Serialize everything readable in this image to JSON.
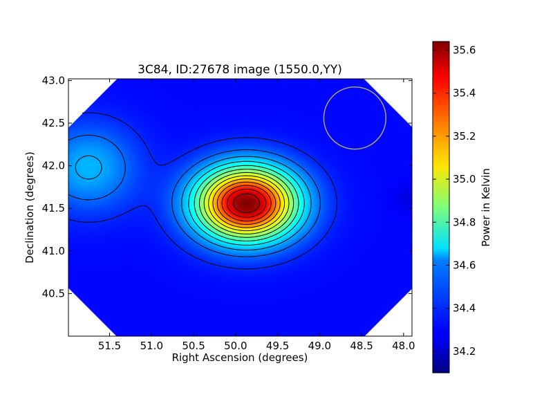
{
  "chart_data": {
    "type": "heatmap",
    "title": "3C84, ID:27678 image (1550.0,YY)",
    "xlabel": "Right Ascension (degrees)",
    "ylabel": "Declination (degrees)",
    "xlim": [
      51.99,
      47.9
    ],
    "ylim": [
      40.0,
      43.02
    ],
    "x_ticks": [
      51.5,
      51.0,
      50.5,
      50.0,
      49.5,
      49.0,
      48.5,
      48.0
    ],
    "x_tick_labels": [
      "51.5",
      "51.0",
      "50.5",
      "50.0",
      "49.5",
      "49.0",
      "48.5",
      "48.0"
    ],
    "y_ticks": [
      40.5,
      41.0,
      41.5,
      42.0,
      42.5,
      43.0
    ],
    "y_tick_labels": [
      "40.5",
      "41.0",
      "41.5",
      "42.0",
      "42.5",
      "43.0"
    ],
    "colorbar": {
      "label": "Power in Kelvin",
      "range": [
        34.1,
        35.64
      ],
      "ticks": [
        34.2,
        34.4,
        34.6,
        34.8,
        35.0,
        35.2,
        35.4,
        35.6
      ],
      "tick_labels": [
        "34.2",
        "34.4",
        "34.6",
        "34.8",
        "35.0",
        "35.2",
        "35.4",
        "35.6"
      ],
      "colormap": "jet"
    },
    "sources": [
      {
        "ra": 49.87,
        "dec": 41.56,
        "peak": 35.64,
        "baseline": 34.3,
        "sigma_ra": 0.42,
        "sigma_dec": 0.3
      },
      {
        "ra": 51.75,
        "dec": 41.98,
        "peak": 34.57,
        "sigma_ra": 0.4,
        "sigma_dec": 0.35
      },
      {
        "ra": 47.95,
        "dec": 41.62,
        "peak": 34.25,
        "sigma_ra": 0.12,
        "sigma_dec": 0.12
      }
    ],
    "contour_levels": [
      34.25,
      34.35,
      34.45,
      34.55,
      34.65,
      34.75,
      34.85,
      34.95,
      35.05,
      35.15,
      35.25,
      35.35,
      35.45,
      35.55
    ],
    "beam_circle": {
      "ra": 48.58,
      "dec": 42.56,
      "radius_deg": 0.37,
      "color": "#aaa66a"
    },
    "grid": false,
    "colors": {
      "contour": "#000000",
      "outside": "#ffffff"
    }
  }
}
